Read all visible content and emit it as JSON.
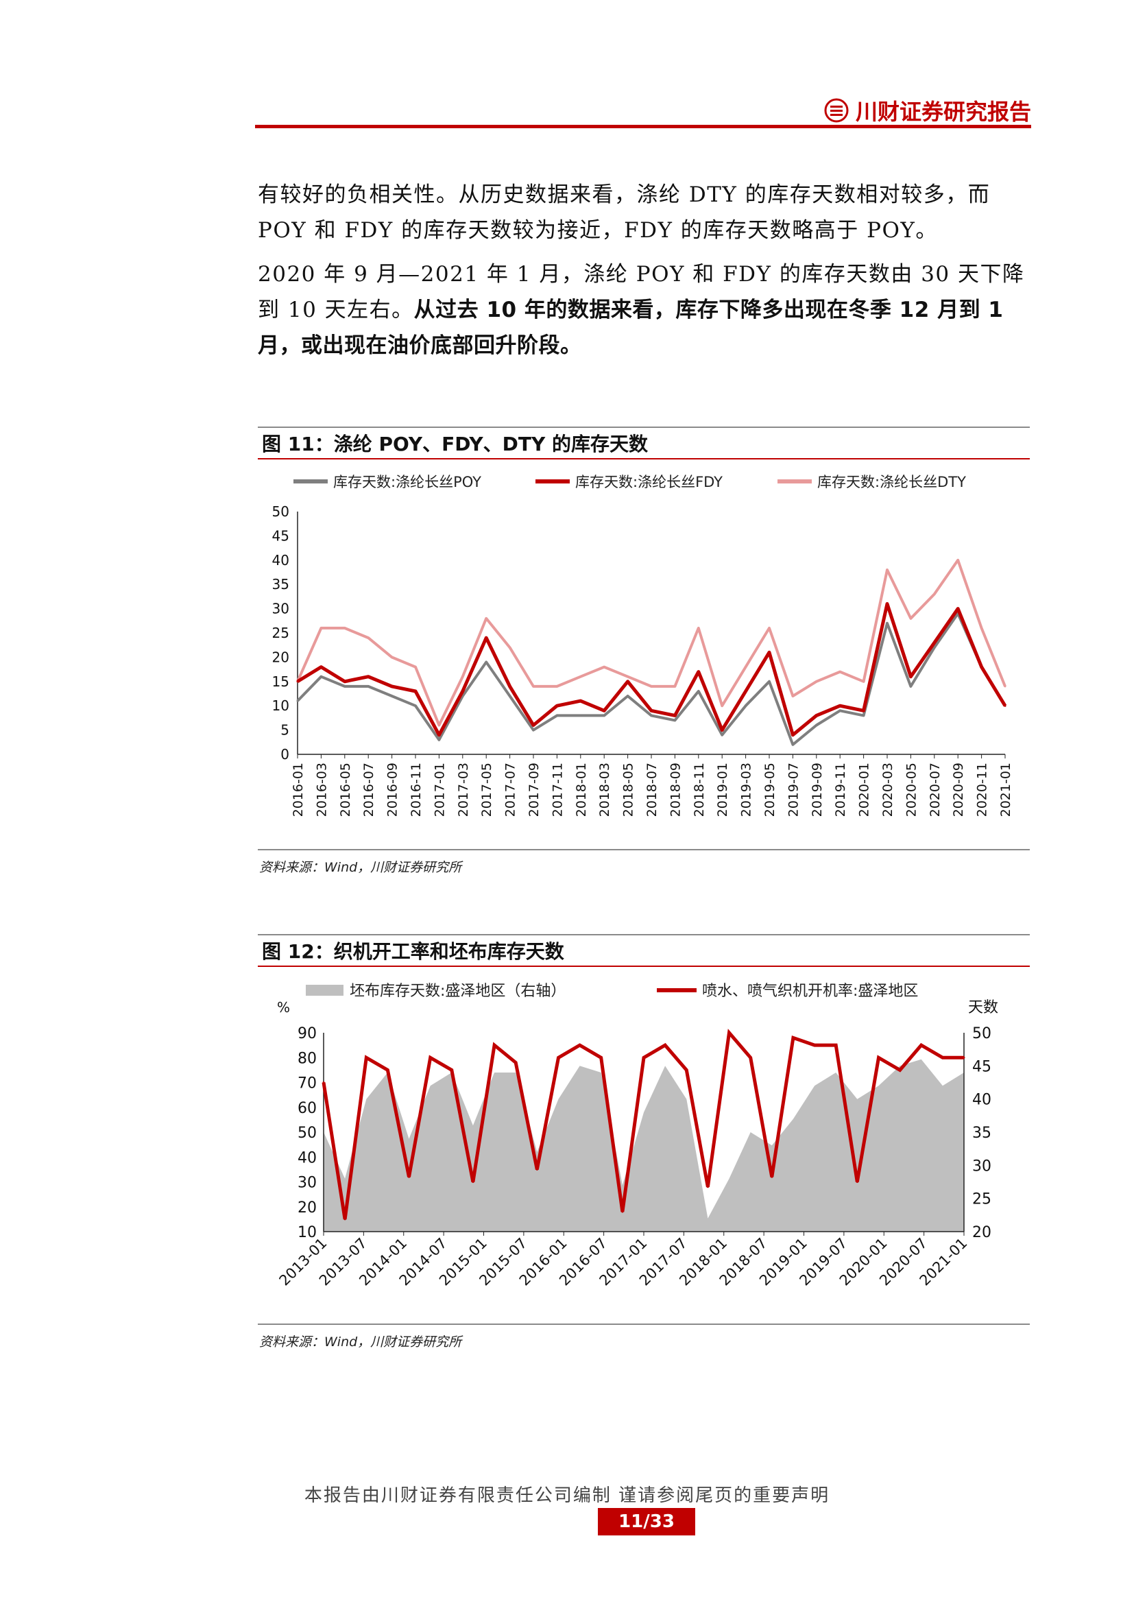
{
  "header": {
    "brand": "川财证券研究报告",
    "accent_color": "#c00000"
  },
  "body": {
    "para1": "有较好的负相关性。从历史数据来看，涤纶 DTY 的库存天数相对较多，而 POY 和 FDY 的库存天数较为接近，FDY 的库存天数略高于 POY。",
    "para2_normal": "2020 年 9 月—2021 年 1 月，涤纶 POY 和 FDY 的库存天数由 30 天下降到 10 天左右。",
    "para2_bold": "从过去 10 年的数据来看，库存下降多出现在冬季 12 月到 1 月，或出现在油价底部回升阶段。"
  },
  "figure11": {
    "title": "图 11：涤纶 POY、FDY、DTY 的库存天数",
    "source": "资料来源：Wind，川财证券研究所"
  },
  "figure12": {
    "title": "图 12：织机开工率和坯布库存天数",
    "source": "资料来源：Wind，川财证券研究所"
  },
  "chart_data": [
    {
      "type": "line",
      "legend_position": "top",
      "x_ticks": [
        "2016-01",
        "2016-03",
        "2016-05",
        "2016-07",
        "2016-09",
        "2016-11",
        "2017-01",
        "2017-03",
        "2017-05",
        "2017-07",
        "2017-09",
        "2017-11",
        "2018-01",
        "2018-03",
        "2018-05",
        "2018-07",
        "2018-09",
        "2018-11",
        "2019-01",
        "2019-03",
        "2019-05",
        "2019-07",
        "2019-09",
        "2019-11",
        "2020-01",
        "2020-03",
        "2020-05",
        "2020-07",
        "2020-09",
        "2020-11",
        "2021-01"
      ],
      "ylim": [
        0,
        50
      ],
      "y_ticks": [
        0,
        5,
        10,
        15,
        20,
        25,
        30,
        35,
        40,
        45,
        50
      ],
      "series": [
        {
          "name": "库存天数:涤纶长丝POY",
          "color": "#7f7f7f",
          "values": [
            11,
            16,
            14,
            14,
            12,
            10,
            3,
            12,
            19,
            12,
            5,
            8,
            8,
            8,
            12,
            8,
            7,
            13,
            4,
            10,
            15,
            2,
            6,
            9,
            8,
            27,
            14,
            22,
            29,
            18,
            10
          ]
        },
        {
          "name": "库存天数:涤纶长丝FDY",
          "color": "#c00000",
          "values": [
            15,
            18,
            15,
            16,
            14,
            13,
            4,
            13,
            24,
            14,
            6,
            10,
            11,
            9,
            15,
            9,
            8,
            17,
            5,
            13,
            21,
            4,
            8,
            10,
            9,
            31,
            16,
            23,
            30,
            18,
            10
          ]
        },
        {
          "name": "库存天数:涤纶长丝DTY",
          "color": "#e89a9a",
          "values": [
            15,
            26,
            26,
            24,
            20,
            18,
            6,
            16,
            28,
            22,
            14,
            14,
            16,
            18,
            16,
            14,
            14,
            26,
            10,
            18,
            26,
            12,
            15,
            17,
            15,
            38,
            28,
            33,
            40,
            26,
            14
          ]
        }
      ]
    },
    {
      "type": "area+line",
      "legend_position": "top",
      "x_ticks": [
        "2013-01",
        "2013-07",
        "2014-01",
        "2014-07",
        "2015-01",
        "2015-07",
        "2016-01",
        "2016-07",
        "2017-01",
        "2017-07",
        "2018-01",
        "2018-07",
        "2019-01",
        "2019-07",
        "2020-01",
        "2020-07",
        "2021-01"
      ],
      "y_left_label": "%",
      "y_left_lim": [
        10,
        90
      ],
      "y_left_ticks": [
        10,
        20,
        30,
        40,
        50,
        60,
        70,
        80,
        90
      ],
      "y_right_label": "天数",
      "y_right_lim": [
        20,
        50
      ],
      "y_right_ticks": [
        20,
        25,
        30,
        35,
        40,
        45,
        50
      ],
      "series": [
        {
          "name": "坯布库存天数:盛泽地区（右轴）",
          "color": "#bfbfbf",
          "axis": "right",
          "values": [
            35,
            28,
            40,
            44,
            34,
            42,
            44,
            36,
            44,
            44,
            32,
            40,
            45,
            44,
            27,
            38,
            45,
            40,
            22,
            28,
            35,
            33,
            37,
            42,
            44,
            40,
            42,
            45,
            46,
            42,
            44
          ]
        },
        {
          "name": "喷水、喷气织机开机率:盛泽地区",
          "color": "#c00000",
          "axis": "left",
          "values": [
            70,
            15,
            80,
            75,
            32,
            80,
            75,
            30,
            85,
            78,
            35,
            80,
            85,
            80,
            18,
            80,
            85,
            75,
            28,
            90,
            80,
            32,
            88,
            85,
            85,
            30,
            80,
            75,
            85,
            80,
            80
          ]
        }
      ]
    }
  ],
  "footer": {
    "statement": "本报告由川财证券有限责任公司编制 谨请参阅尾页的重要声明",
    "page": "11/33"
  }
}
